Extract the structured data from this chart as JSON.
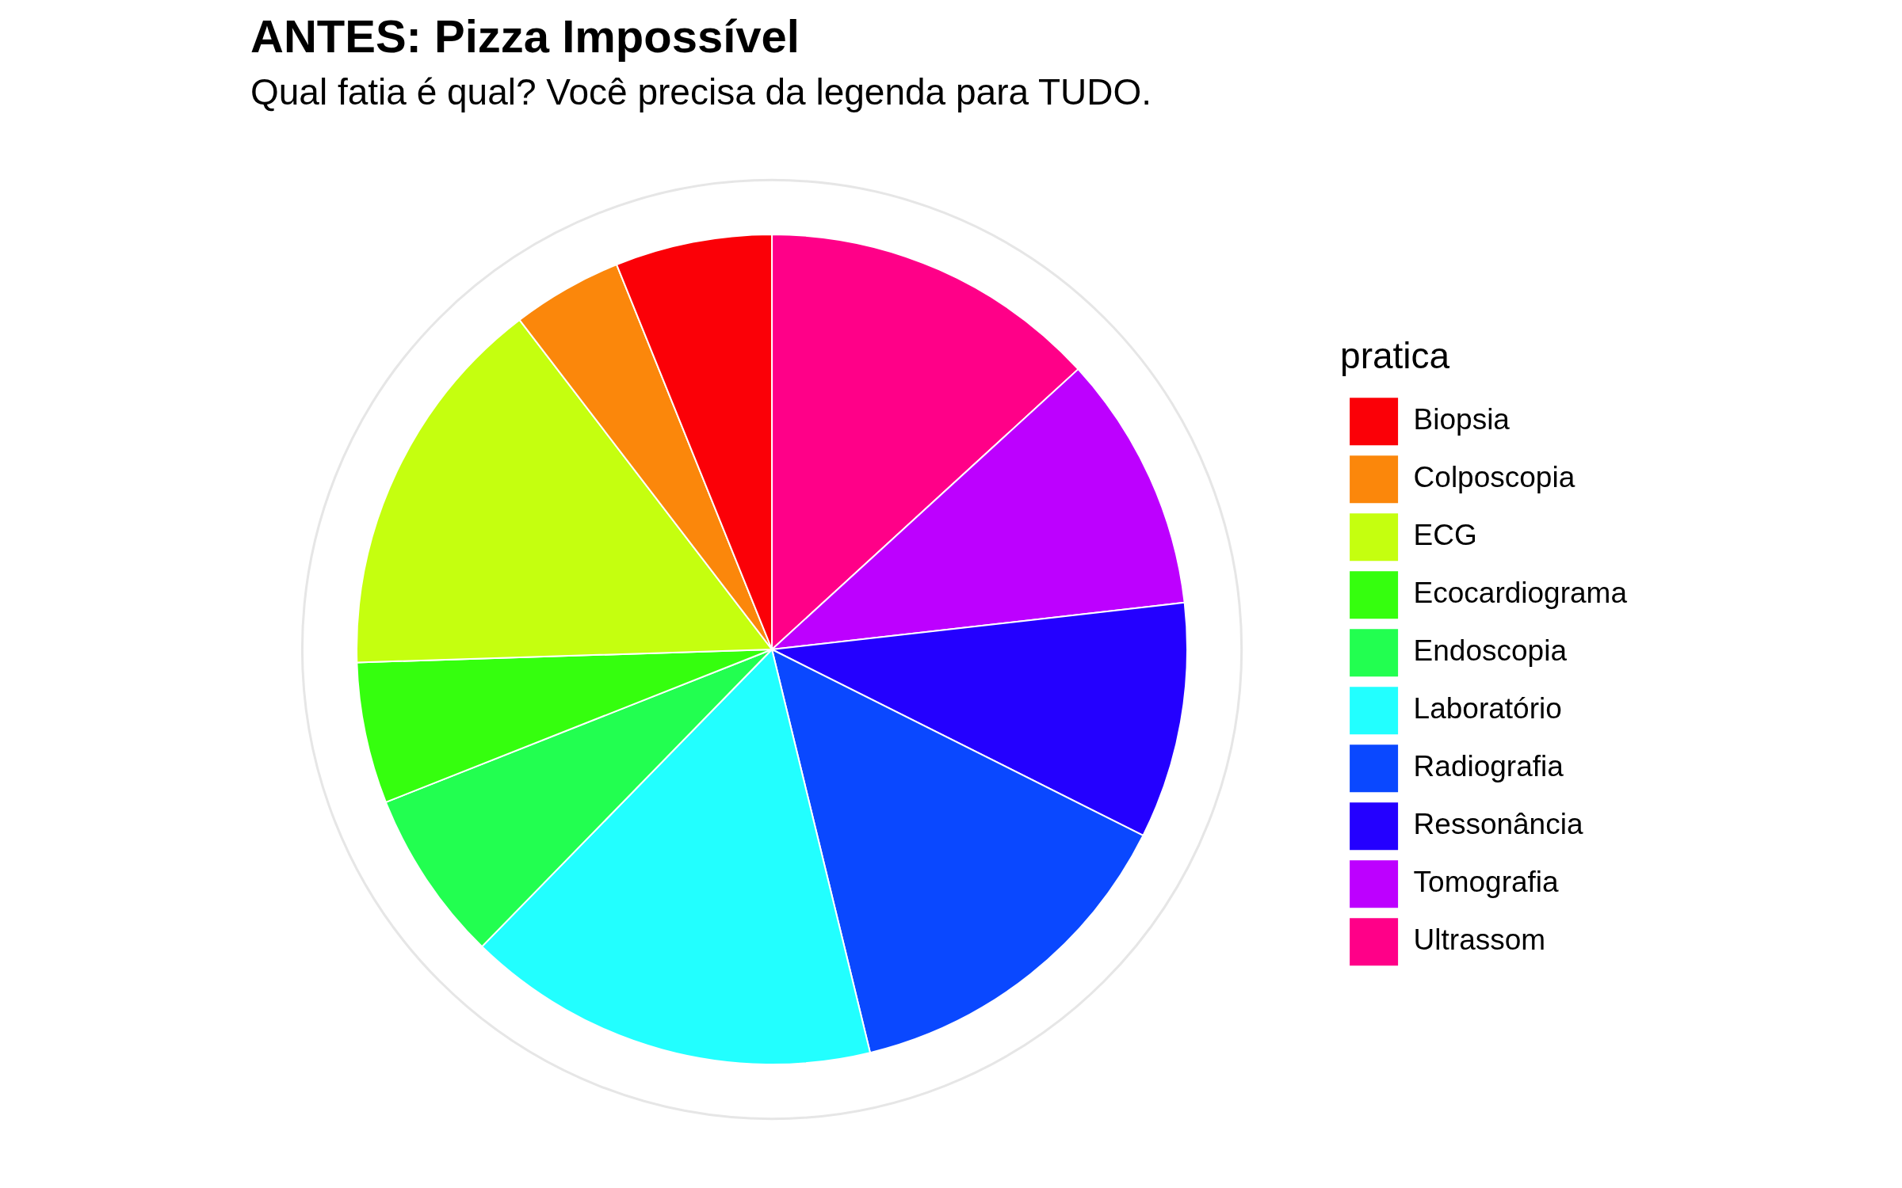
{
  "chart_data": {
    "type": "pie",
    "title": "ANTES: Pizza Impossível",
    "subtitle": "Qual fatia é qual? Você precisa da legenda para TUDO.",
    "legend_title": "pratica",
    "categories": [
      "Biopsia",
      "Colposcopia",
      "ECG",
      "Ecocardiograma",
      "Endoscopia",
      "Laboratório",
      "Radiografia",
      "Ressonância",
      "Tomografia",
      "Ultrassom"
    ],
    "values": [
      6.1,
      4.3,
      15.1,
      5.5,
      6.7,
      16.1,
      13.8,
      9.2,
      10.0,
      13.2
    ],
    "colors": [
      "#fb0007",
      "#fb870b",
      "#c5ff0f",
      "#35ff0e",
      "#22ff50",
      "#22ffff",
      "#0a48ff",
      "#2400ff",
      "#bd00ff",
      "#ff0088"
    ],
    "legend": "right",
    "grid": true
  }
}
